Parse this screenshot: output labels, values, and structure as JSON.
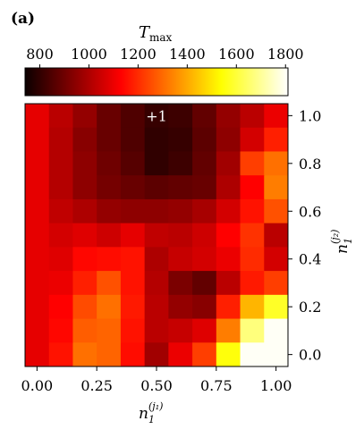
{
  "panel_label": "(a)",
  "colorbar": {
    "title_main": "T",
    "title_sub": "max",
    "ticks": [
      "800",
      "1000",
      "1200",
      "1400",
      "1600",
      "1800"
    ],
    "tick_values": [
      800,
      1000,
      1200,
      1400,
      1600,
      1800
    ],
    "range": [
      740,
      1810
    ],
    "colormap": "hot"
  },
  "x_axis": {
    "label_main": "n",
    "label_sub_bottom": "1",
    "label_sup": "(j₁)",
    "ticks": [
      "0.00",
      "0.25",
      "0.50",
      "0.75",
      "1.00"
    ],
    "tick_values": [
      0.0,
      0.25,
      0.5,
      0.75,
      1.0
    ]
  },
  "y_axis": {
    "label_main": "n",
    "label_sub_bottom": "1",
    "label_sup": "(j₂)",
    "ticks": [
      "0.0",
      "0.2",
      "0.4",
      "0.6",
      "0.8",
      "1.0"
    ],
    "tick_values": [
      0.0,
      0.2,
      0.4,
      0.6,
      0.8,
      1.0
    ],
    "position": "right"
  },
  "marker": {
    "label": "+1",
    "x": 0.5,
    "y": 1.0
  },
  "chart_data": {
    "type": "heatmap",
    "x": [
      0.0,
      0.1,
      0.2,
      0.3,
      0.4,
      0.5,
      0.6,
      0.7,
      0.8,
      0.9,
      1.0
    ],
    "y": [
      1.0,
      0.9,
      0.8,
      0.7,
      0.6,
      0.5,
      0.4,
      0.3,
      0.2,
      0.1,
      0.0
    ],
    "xlim": [
      -0.05,
      1.05
    ],
    "ylim": [
      -0.05,
      1.05
    ],
    "z": [
      [
        1090,
        1020,
        960,
        890,
        850,
        810,
        820,
        880,
        960,
        1020,
        1100
      ],
      [
        1090,
        1010,
        940,
        890,
        850,
        800,
        810,
        870,
        950,
        1060,
        1180
      ],
      [
        1090,
        1010,
        950,
        900,
        860,
        800,
        820,
        880,
        980,
        1230,
        1310
      ],
      [
        1090,
        1010,
        950,
        910,
        890,
        870,
        880,
        890,
        1000,
        1130,
        1330
      ],
      [
        1090,
        1030,
        1000,
        960,
        950,
        950,
        960,
        990,
        1060,
        1160,
        1260
      ],
      [
        1090,
        1060,
        1080,
        1050,
        1090,
        1030,
        1020,
        1050,
        1130,
        1210,
        1020
      ],
      [
        1090,
        1080,
        1140,
        1150,
        1160,
        1000,
        1040,
        1060,
        1100,
        1200,
        1060
      ],
      [
        1090,
        1100,
        1180,
        1260,
        1160,
        1010,
        920,
        880,
        1020,
        1170,
        1230
      ],
      [
        1090,
        1130,
        1250,
        1310,
        1170,
        1020,
        960,
        940,
        1180,
        1420,
        1580
      ],
      [
        1090,
        1140,
        1280,
        1290,
        1160,
        1020,
        1040,
        1080,
        1330,
        1670,
        1800
      ],
      [
        1090,
        1160,
        1310,
        1290,
        1150,
        980,
        1100,
        1230,
        1550,
        1800,
        1800
      ]
    ]
  }
}
